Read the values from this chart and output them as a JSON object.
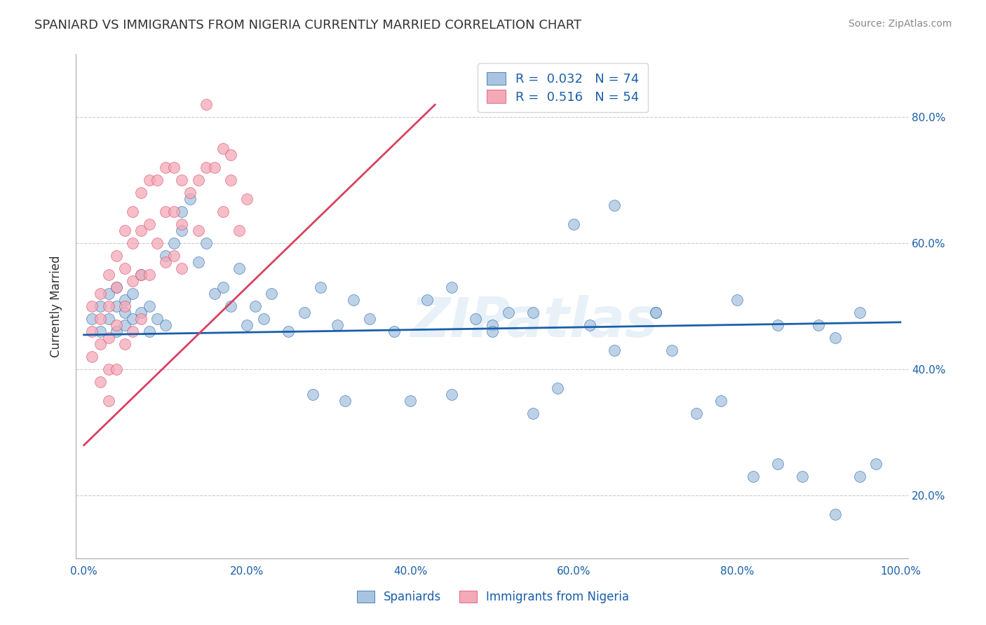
{
  "title": "SPANIARD VS IMMIGRANTS FROM NIGERIA CURRENTLY MARRIED CORRELATION CHART",
  "source_text": "Source: ZipAtlas.com",
  "ylabel": "Currently Married",
  "right_ytick_labels": [
    "20.0%",
    "40.0%",
    "60.0%",
    "80.0%"
  ],
  "right_ytick_vals": [
    0.2,
    0.4,
    0.6,
    0.8
  ],
  "xtick_labels": [
    "0.0%",
    "20.0%",
    "40.0%",
    "60.0%",
    "80.0%",
    "100.0%"
  ],
  "xtick_vals": [
    0.0,
    0.2,
    0.4,
    0.6,
    0.8,
    1.0
  ],
  "xlim": [
    -0.01,
    1.01
  ],
  "ylim": [
    0.1,
    0.9
  ],
  "blue_R": 0.032,
  "blue_N": 74,
  "pink_R": 0.516,
  "pink_N": 54,
  "blue_color": "#a8c4e0",
  "pink_color": "#f4a8b8",
  "blue_line_color": "#1a5fa8",
  "pink_line_color": "#d94060",
  "grid_color": "#cccccc",
  "background_color": "#ffffff",
  "title_color": "#333333",
  "watermark_text": "ZIPatlas",
  "spaniards_label": "Spaniards",
  "nigeria_label": "Immigrants from Nigeria",
  "blue_trend_x": [
    0.0,
    1.0
  ],
  "blue_trend_y": [
    0.455,
    0.475
  ],
  "pink_trend_x": [
    0.0,
    0.43
  ],
  "pink_trend_y": [
    0.28,
    0.82
  ],
  "blue_scatter_x": [
    0.01,
    0.02,
    0.02,
    0.03,
    0.03,
    0.04,
    0.04,
    0.04,
    0.05,
    0.05,
    0.05,
    0.06,
    0.06,
    0.07,
    0.07,
    0.08,
    0.08,
    0.09,
    0.1,
    0.1,
    0.11,
    0.12,
    0.12,
    0.13,
    0.14,
    0.15,
    0.16,
    0.17,
    0.18,
    0.19,
    0.2,
    0.21,
    0.22,
    0.23,
    0.25,
    0.27,
    0.29,
    0.31,
    0.33,
    0.38,
    0.42,
    0.45,
    0.48,
    0.52,
    0.55,
    0.58,
    0.62,
    0.65,
    0.7,
    0.72,
    0.75,
    0.78,
    0.82,
    0.85,
    0.88,
    0.92,
    0.95,
    0.97,
    0.5,
    0.55,
    0.6,
    0.65,
    0.7,
    0.8,
    0.85,
    0.9,
    0.92,
    0.95,
    0.5,
    0.35,
    0.4,
    0.45,
    0.28,
    0.32
  ],
  "blue_scatter_y": [
    0.48,
    0.5,
    0.46,
    0.52,
    0.48,
    0.5,
    0.46,
    0.53,
    0.51,
    0.47,
    0.49,
    0.52,
    0.48,
    0.55,
    0.49,
    0.5,
    0.46,
    0.48,
    0.58,
    0.47,
    0.6,
    0.62,
    0.65,
    0.67,
    0.57,
    0.6,
    0.52,
    0.53,
    0.5,
    0.56,
    0.47,
    0.5,
    0.48,
    0.52,
    0.46,
    0.49,
    0.53,
    0.47,
    0.51,
    0.46,
    0.51,
    0.53,
    0.48,
    0.49,
    0.33,
    0.37,
    0.47,
    0.43,
    0.49,
    0.43,
    0.33,
    0.35,
    0.23,
    0.25,
    0.23,
    0.17,
    0.23,
    0.25,
    0.47,
    0.49,
    0.63,
    0.66,
    0.49,
    0.51,
    0.47,
    0.47,
    0.45,
    0.49,
    0.46,
    0.48,
    0.35,
    0.36,
    0.36,
    0.35
  ],
  "pink_scatter_x": [
    0.01,
    0.01,
    0.01,
    0.02,
    0.02,
    0.02,
    0.02,
    0.03,
    0.03,
    0.03,
    0.03,
    0.03,
    0.04,
    0.04,
    0.04,
    0.04,
    0.05,
    0.05,
    0.05,
    0.05,
    0.06,
    0.06,
    0.06,
    0.06,
    0.07,
    0.07,
    0.07,
    0.07,
    0.08,
    0.08,
    0.08,
    0.09,
    0.09,
    0.1,
    0.1,
    0.1,
    0.11,
    0.11,
    0.11,
    0.12,
    0.12,
    0.12,
    0.13,
    0.14,
    0.14,
    0.15,
    0.16,
    0.17,
    0.17,
    0.18,
    0.19,
    0.2,
    0.15,
    0.18
  ],
  "pink_scatter_y": [
    0.5,
    0.46,
    0.42,
    0.52,
    0.48,
    0.44,
    0.38,
    0.55,
    0.5,
    0.45,
    0.4,
    0.35,
    0.58,
    0.53,
    0.47,
    0.4,
    0.62,
    0.56,
    0.5,
    0.44,
    0.65,
    0.6,
    0.54,
    0.46,
    0.68,
    0.62,
    0.55,
    0.48,
    0.7,
    0.63,
    0.55,
    0.7,
    0.6,
    0.72,
    0.65,
    0.57,
    0.72,
    0.65,
    0.58,
    0.7,
    0.63,
    0.56,
    0.68,
    0.7,
    0.62,
    0.72,
    0.72,
    0.75,
    0.65,
    0.7,
    0.62,
    0.67,
    0.82,
    0.74
  ]
}
